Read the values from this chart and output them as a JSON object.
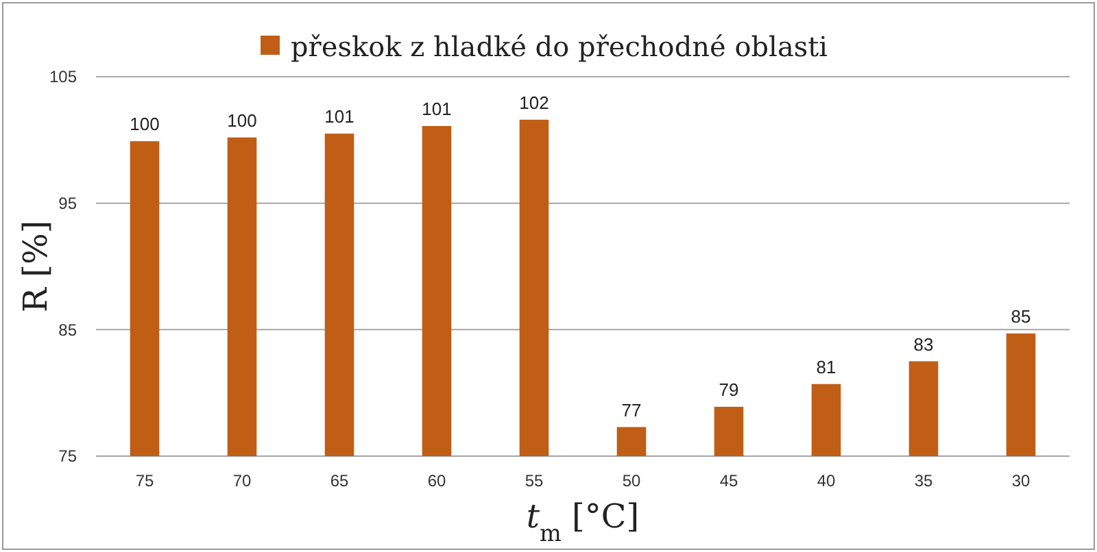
{
  "chart_data": {
    "type": "bar",
    "xlabel": "t$_{m}$ [°C]",
    "ylabel": "R [%]",
    "categories": [
      "75",
      "70",
      "65",
      "60",
      "55",
      "50",
      "45",
      "40",
      "35",
      "30"
    ],
    "series": [
      {
        "name": "přeskok z hladké do přechodné oblasti",
        "color": "#c05e16",
        "values": [
          99.9,
          100.2,
          100.5,
          101.1,
          101.6,
          77.3,
          78.9,
          80.7,
          82.5,
          84.7
        ],
        "value_labels": [
          "100",
          "100",
          "101",
          "101",
          "102",
          "77",
          "79",
          "81",
          "83",
          "85"
        ]
      }
    ],
    "ylim": [
      75,
      105
    ],
    "yticks": [
      75,
      85,
      95,
      105
    ],
    "grid": "y",
    "legend": "top"
  }
}
